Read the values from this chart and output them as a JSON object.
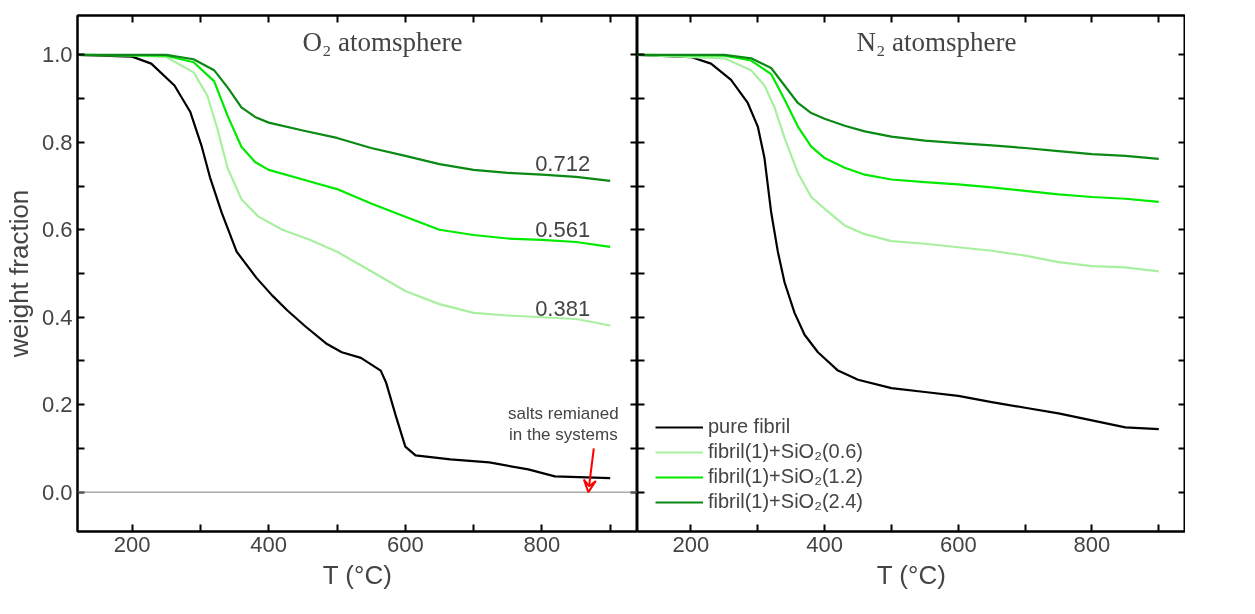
{
  "chart_data": [
    {
      "type": "line",
      "title": "O₂ atomsphere",
      "xlabel": "T (°C)",
      "ylabel": "weight fraction",
      "xlim": [
        120,
        940
      ],
      "ylim": [
        -0.09,
        1.09
      ],
      "xticks": [
        200,
        {
          "value": 300,
          "label": null
        },
        400,
        {
          "value": 500,
          "label": null
        },
        600,
        {
          "value": 700,
          "label": null
        },
        800,
        {
          "value": 900,
          "label": null
        }
      ],
      "yticks": [
        {
          "value": 0,
          "label": "0.0"
        },
        {
          "value": 0.1,
          "label": null
        },
        0.2,
        {
          "value": 0.3,
          "label": null
        },
        0.4,
        {
          "value": 0.5,
          "label": null
        },
        0.6,
        {
          "value": 0.7,
          "label": null
        },
        0.8,
        {
          "value": 0.9,
          "label": null
        },
        {
          "value": 1,
          "label": "1.0"
        }
      ],
      "grid": false,
      "legend": false,
      "line_style": "solid",
      "marker": "none",
      "ref_lines": [
        {
          "axis": "y",
          "value": 0,
          "label": null,
          "color": "#808080"
        }
      ],
      "annotations": [
        {
          "text": "salts remianed\nin the systems",
          "x": 868,
          "y": 0.0
        }
      ],
      "series": [
        {
          "color": "#000000",
          "x": [
            120,
            200,
            228,
            262,
            285,
            302,
            314,
            331,
            353,
            382,
            405,
            427,
            453,
            484,
            507,
            535,
            564,
            572,
            586,
            600,
            615,
            666,
            723,
            780,
            819,
            900
          ],
          "values": [
            1.0,
            0.996,
            0.98,
            0.93,
            0.87,
            0.79,
            0.72,
            0.64,
            0.55,
            0.49,
            0.45,
            0.416,
            0.38,
            0.34,
            0.32,
            0.307,
            0.278,
            0.25,
            0.175,
            0.104,
            0.084,
            0.075,
            0.068,
            0.052,
            0.036,
            0.032
          ]
        },
        {
          "color": "#a8f0a0",
          "x": [
            120,
            200,
            250,
            290,
            310,
            325,
            340,
            360,
            385,
            420,
            460,
            500,
            550,
            600,
            650,
            700,
            750,
            800,
            850,
            900
          ],
          "values": [
            1.0,
            0.999,
            0.995,
            0.96,
            0.907,
            0.83,
            0.74,
            0.67,
            0.63,
            0.6,
            0.577,
            0.55,
            0.505,
            0.46,
            0.43,
            0.41,
            0.404,
            0.4,
            0.396,
            0.381
          ],
          "value_labels": [
            null,
            null,
            null,
            null,
            null,
            null,
            null,
            null,
            null,
            null,
            null,
            null,
            null,
            null,
            null,
            null,
            null,
            null,
            null,
            "0.381"
          ]
        },
        {
          "color": "#00ea00",
          "x": [
            120,
            250,
            290,
            320,
            340,
            360,
            380,
            400,
            450,
            500,
            550,
            600,
            650,
            700,
            750,
            800,
            850,
            900
          ],
          "values": [
            1.0,
            0.998,
            0.983,
            0.94,
            0.86,
            0.79,
            0.755,
            0.737,
            0.715,
            0.693,
            0.66,
            0.63,
            0.6,
            0.588,
            0.58,
            0.577,
            0.572,
            0.561
          ],
          "value_labels": [
            null,
            null,
            null,
            null,
            null,
            null,
            null,
            null,
            null,
            null,
            null,
            null,
            null,
            null,
            null,
            null,
            null,
            "0.561"
          ]
        },
        {
          "color": "#0a8a14",
          "x": [
            120,
            250,
            290,
            320,
            340,
            360,
            380,
            400,
            450,
            500,
            550,
            600,
            650,
            700,
            750,
            800,
            850,
            900
          ],
          "values": [
            1.0,
            1.0,
            0.99,
            0.965,
            0.925,
            0.88,
            0.858,
            0.845,
            0.827,
            0.81,
            0.787,
            0.769,
            0.75,
            0.737,
            0.73,
            0.726,
            0.721,
            0.712
          ],
          "value_labels": [
            null,
            null,
            null,
            null,
            null,
            null,
            null,
            null,
            null,
            null,
            null,
            null,
            null,
            null,
            null,
            null,
            null,
            "0.712"
          ]
        }
      ]
    },
    {
      "type": "line",
      "title": "N₂ atomsphere",
      "xlabel": "T (°C)",
      "tick_labels": "x",
      "xlim": [
        120,
        940
      ],
      "ylim": [
        -0.09,
        1.09
      ],
      "xticks": [
        200,
        {
          "value": 300,
          "label": null
        },
        400,
        {
          "value": 500,
          "label": null
        },
        600,
        {
          "value": 700,
          "label": null
        },
        800,
        {
          "value": 900,
          "label": null
        }
      ],
      "yticks": [
        0,
        0.1,
        0.2,
        0.3,
        0.4,
        0.5,
        0.6,
        0.7,
        0.8,
        0.9,
        1
      ],
      "grid": false,
      "legend": "bottom left",
      "line_style": "solid",
      "marker": "none",
      "series": [
        {
          "name": "pure fibril",
          "color": "#000000",
          "x": [
            120,
            200,
            230,
            260,
            285,
            300,
            310,
            320,
            330,
            340,
            355,
            370,
            390,
            420,
            450,
            500,
            550,
            600,
            650,
            700,
            750,
            800,
            850,
            900
          ],
          "values": [
            1.0,
            0.995,
            0.98,
            0.943,
            0.89,
            0.836,
            0.764,
            0.64,
            0.55,
            0.48,
            0.41,
            0.36,
            0.32,
            0.278,
            0.257,
            0.238,
            0.229,
            0.22,
            0.206,
            0.193,
            0.18,
            0.164,
            0.148,
            0.144
          ]
        },
        {
          "name": "fibril(1)+SiO₂(0.6)",
          "color": "#a8f0a0",
          "x": [
            120,
            250,
            290,
            310,
            325,
            340,
            360,
            380,
            400,
            430,
            460,
            500,
            550,
            600,
            650,
            700,
            750,
            800,
            850,
            900
          ],
          "values": [
            1.0,
            0.992,
            0.965,
            0.93,
            0.88,
            0.81,
            0.73,
            0.675,
            0.648,
            0.61,
            0.59,
            0.574,
            0.568,
            0.56,
            0.552,
            0.541,
            0.526,
            0.517,
            0.514,
            0.505
          ]
        },
        {
          "name": "fibril(1)+SiO₂(1.2)",
          "color": "#00ea00",
          "x": [
            120,
            250,
            290,
            320,
            340,
            360,
            380,
            400,
            430,
            460,
            500,
            550,
            600,
            650,
            700,
            750,
            800,
            850,
            900
          ],
          "values": [
            1.0,
            0.998,
            0.987,
            0.956,
            0.898,
            0.836,
            0.79,
            0.764,
            0.742,
            0.726,
            0.715,
            0.709,
            0.704,
            0.697,
            0.689,
            0.681,
            0.675,
            0.671,
            0.664
          ]
        },
        {
          "name": "fibril(1)+SiO₂(2.4)",
          "color": "#0a8a14",
          "x": [
            120,
            250,
            290,
            320,
            340,
            360,
            380,
            400,
            430,
            460,
            500,
            550,
            600,
            650,
            700,
            750,
            800,
            850,
            900
          ],
          "values": [
            1.0,
            1.0,
            0.992,
            0.97,
            0.93,
            0.89,
            0.867,
            0.854,
            0.838,
            0.825,
            0.813,
            0.804,
            0.798,
            0.793,
            0.787,
            0.78,
            0.773,
            0.769,
            0.762
          ]
        }
      ]
    }
  ]
}
